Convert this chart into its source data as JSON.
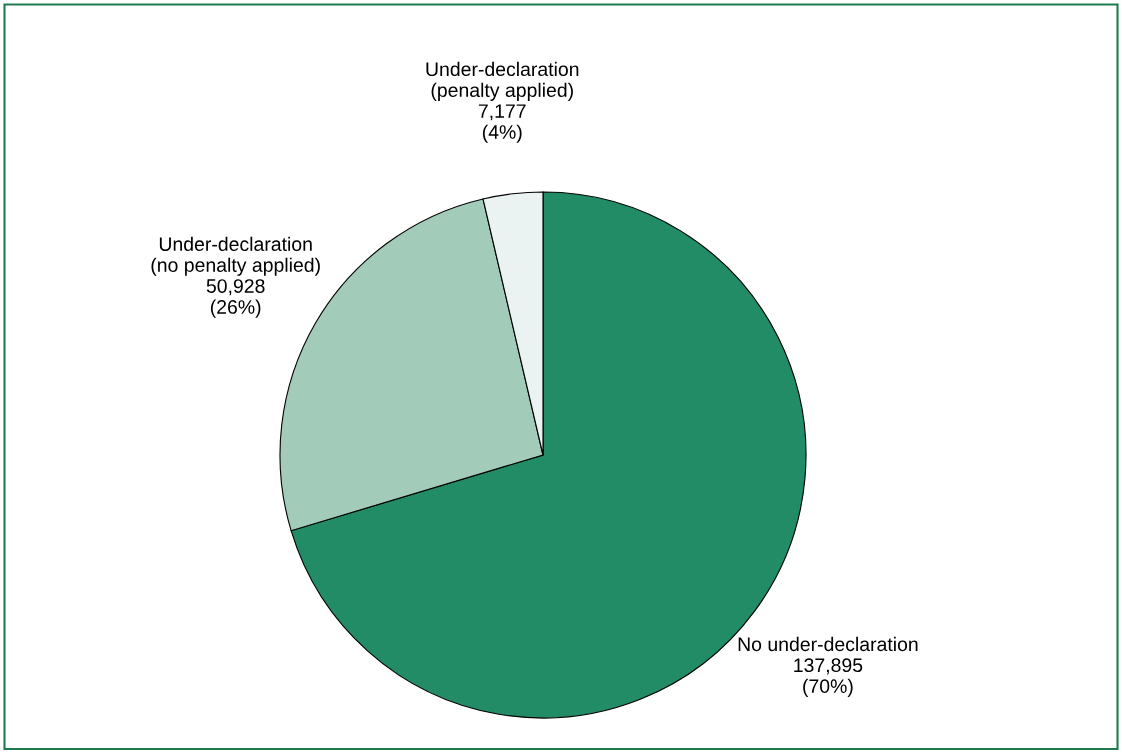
{
  "chart_data": {
    "type": "pie",
    "categories": [
      "No under-declaration",
      "Under-declaration\n(no penalty applied)",
      "Under-declaration\n(penalty applied)"
    ],
    "values": [
      137895,
      50928,
      7177
    ],
    "colors": [
      "#218c65",
      "#a3cbb9",
      "#eaf3f1"
    ],
    "value_labels": [
      "137,895\n(70%)",
      "50,928\n(26%)",
      "7,177\n(4%)"
    ],
    "legend": false
  }
}
